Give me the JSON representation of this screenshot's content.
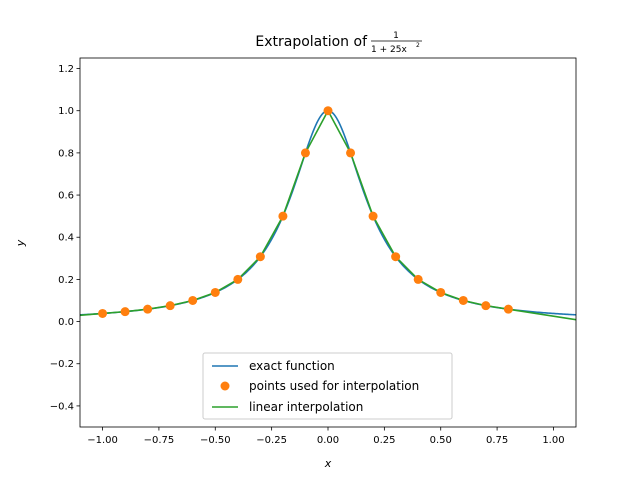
{
  "chart_data": {
    "type": "line",
    "title": "Extrapolation of",
    "title_fraction": {
      "numerator": "1",
      "denominator": "1 + 25x",
      "exponent": "2"
    },
    "xlabel": "x",
    "ylabel": "y",
    "xlim": [
      -1.1,
      1.1
    ],
    "ylim": [
      -0.5,
      1.25
    ],
    "xticks": [
      -1.0,
      -0.75,
      -0.5,
      -0.25,
      0.0,
      0.25,
      0.5,
      0.75,
      1.0
    ],
    "xtick_labels": [
      "−1.00",
      "−0.75",
      "−0.50",
      "−0.25",
      "0.00",
      "0.25",
      "0.50",
      "0.75",
      "1.00"
    ],
    "yticks": [
      -0.4,
      -0.2,
      0.0,
      0.2,
      0.4,
      0.6,
      0.8,
      1.0,
      1.2
    ],
    "ytick_labels": [
      "−0.4",
      "−0.2",
      "0.0",
      "0.2",
      "0.4",
      "0.6",
      "0.8",
      "1.0",
      "1.2"
    ],
    "grid": false,
    "legend_position": "lower-center",
    "series": [
      {
        "name": "exact function",
        "kind": "line",
        "color": "#1f77b4",
        "function": "1/(1+25x^2)",
        "x_range": [
          -1.1,
          1.1
        ]
      },
      {
        "name": "points used for interpolation",
        "kind": "scatter",
        "color": "#ff7f0e",
        "x": [
          -1.0,
          -0.9,
          -0.8,
          -0.7,
          -0.6,
          -0.5,
          -0.4,
          -0.3,
          -0.2,
          -0.1,
          0.0,
          0.1,
          0.2,
          0.3,
          0.4,
          0.5,
          0.6,
          0.7,
          0.8
        ],
        "y": [
          0.0385,
          0.0471,
          0.0588,
          0.0755,
          0.1,
          0.1379,
          0.2,
          0.3077,
          0.5,
          0.8,
          1.0,
          0.8,
          0.5,
          0.3077,
          0.2,
          0.1379,
          0.1,
          0.0755,
          0.0588
        ]
      },
      {
        "name": "linear interpolation",
        "kind": "line",
        "color": "#2ca02c",
        "x": [
          -1.1,
          -1.0,
          -0.9,
          -0.8,
          -0.7,
          -0.6,
          -0.5,
          -0.4,
          -0.3,
          -0.2,
          -0.1,
          0.0,
          0.1,
          0.2,
          0.3,
          0.4,
          0.5,
          0.6,
          0.7,
          0.8,
          1.1
        ],
        "y": [
          0.0299,
          0.0385,
          0.0471,
          0.0588,
          0.0755,
          0.1,
          0.1379,
          0.2,
          0.3077,
          0.5,
          0.8,
          1.0,
          0.8,
          0.5,
          0.3077,
          0.2,
          0.1379,
          0.1,
          0.0755,
          0.0588,
          0.0087
        ]
      }
    ]
  }
}
